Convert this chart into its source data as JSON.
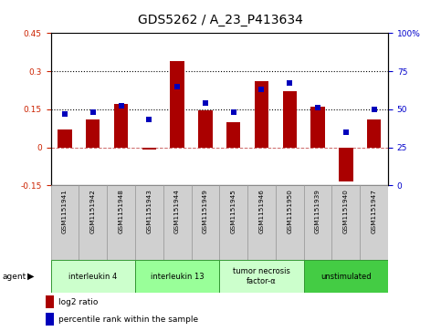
{
  "title": "GDS5262 / A_23_P413634",
  "samples": [
    "GSM1151941",
    "GSM1151942",
    "GSM1151948",
    "GSM1151943",
    "GSM1151944",
    "GSM1151949",
    "GSM1151945",
    "GSM1151946",
    "GSM1151950",
    "GSM1151939",
    "GSM1151940",
    "GSM1151947"
  ],
  "log2_ratio": [
    0.07,
    0.11,
    0.17,
    -0.01,
    0.34,
    0.145,
    0.1,
    0.26,
    0.22,
    0.16,
    -0.135,
    0.11
  ],
  "percentile": [
    47,
    48,
    52,
    43,
    65,
    54,
    48,
    63,
    67,
    51,
    35,
    50
  ],
  "agents": [
    {
      "label": "interleukin 4",
      "samples": [
        0,
        1,
        2
      ],
      "color": "#ccffcc"
    },
    {
      "label": "interleukin 13",
      "samples": [
        3,
        4,
        5
      ],
      "color": "#99ff99"
    },
    {
      "label": "tumor necrosis\nfactor-α",
      "samples": [
        6,
        7,
        8
      ],
      "color": "#ccffcc"
    },
    {
      "label": "unstimulated",
      "samples": [
        9,
        10,
        11
      ],
      "color": "#44cc44"
    }
  ],
  "ylim_left": [
    -0.15,
    0.45
  ],
  "ylim_right": [
    0,
    100
  ],
  "yticks_left": [
    -0.15,
    0.0,
    0.15,
    0.3,
    0.45
  ],
  "yticks_right": [
    0,
    25,
    50,
    75,
    100
  ],
  "bar_color": "#aa0000",
  "dot_color": "#0000bb",
  "hline_dotted": [
    0.15,
    0.3
  ],
  "bg_color": "#ffffff",
  "title_fontsize": 10,
  "tick_fontsize": 6.5,
  "bar_width": 0.5
}
